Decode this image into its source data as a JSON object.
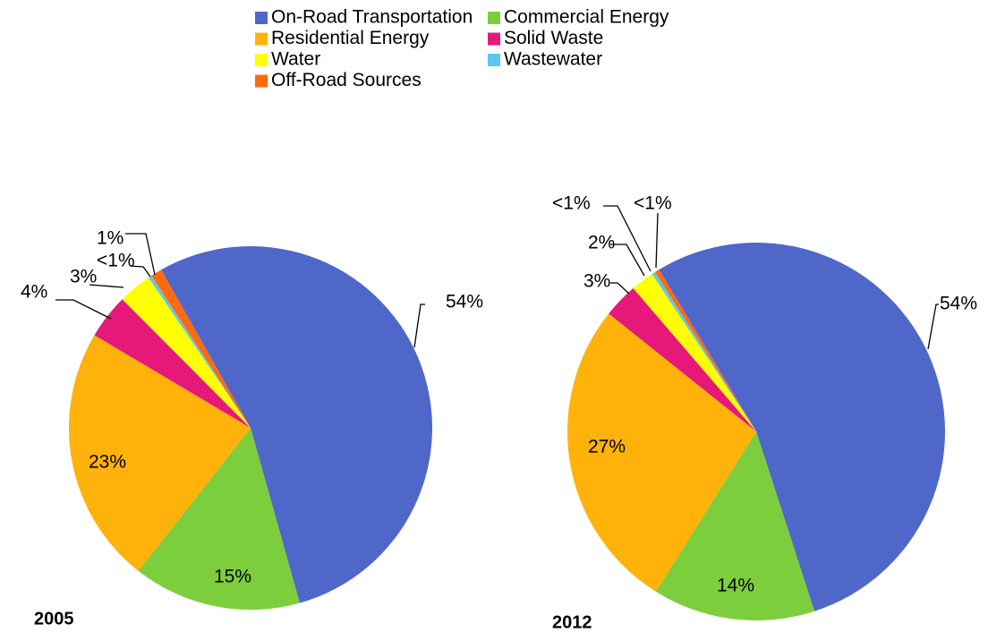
{
  "legend": {
    "labels": [
      "On-Road Transportation",
      "Commercial Energy",
      "Residential Energy",
      "Solid Waste",
      "Water",
      "Wastewater",
      "Off-Road Sources"
    ],
    "colors": [
      "#4f67c8",
      "#7dce3c",
      "#ffb20a",
      "#e6197a",
      "#ffff00",
      "#5bc8f0",
      "#ff6a10"
    ]
  },
  "chart_data": [
    {
      "type": "pie",
      "title": "2005",
      "values": [
        54,
        15,
        23,
        4,
        3,
        0.3,
        1
      ],
      "value_labels": [
        "54%",
        "15%",
        "23%",
        "4%",
        "3%",
        "<1%",
        "1%"
      ]
    },
    {
      "type": "pie",
      "title": "2012",
      "values": [
        54,
        14,
        27,
        3,
        2,
        0.3,
        0.4
      ],
      "value_labels": [
        "54%",
        "14%",
        "27%",
        "3%",
        "2%",
        "<1%",
        "<1%"
      ]
    }
  ]
}
